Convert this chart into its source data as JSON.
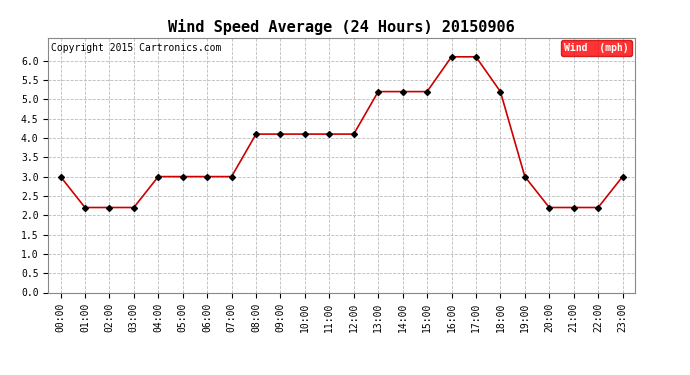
{
  "title": "Wind Speed Average (24 Hours) 20150906",
  "copyright_text": "Copyright 2015 Cartronics.com",
  "legend_label": "Wind  (mph)",
  "legend_bg": "#ff0000",
  "legend_text_color": "#ffffff",
  "hours": [
    "00:00",
    "01:00",
    "02:00",
    "03:00",
    "04:00",
    "05:00",
    "06:00",
    "07:00",
    "08:00",
    "09:00",
    "10:00",
    "11:00",
    "12:00",
    "13:00",
    "14:00",
    "15:00",
    "16:00",
    "17:00",
    "18:00",
    "19:00",
    "20:00",
    "21:00",
    "22:00",
    "23:00"
  ],
  "values": [
    3.0,
    2.2,
    2.2,
    2.2,
    3.0,
    3.0,
    3.0,
    3.0,
    4.1,
    4.1,
    4.1,
    4.1,
    4.1,
    5.2,
    5.2,
    5.2,
    6.1,
    6.1,
    5.2,
    3.0,
    2.2,
    2.2,
    2.2,
    3.0
  ],
  "line_color": "#cc0000",
  "marker_color": "#000000",
  "marker_style": "D",
  "marker_size": 3,
  "ylim": [
    0.0,
    6.6
  ],
  "yticks": [
    0.0,
    0.5,
    1.0,
    1.5,
    2.0,
    2.5,
    3.0,
    3.5,
    4.0,
    4.5,
    5.0,
    5.5,
    6.0
  ],
  "grid_color": "#bbbbbb",
  "grid_style": "--",
  "bg_color": "#ffffff",
  "plot_bg_color": "#ffffff",
  "title_fontsize": 11,
  "tick_fontsize": 7,
  "copyright_fontsize": 7,
  "legend_fontsize": 7
}
